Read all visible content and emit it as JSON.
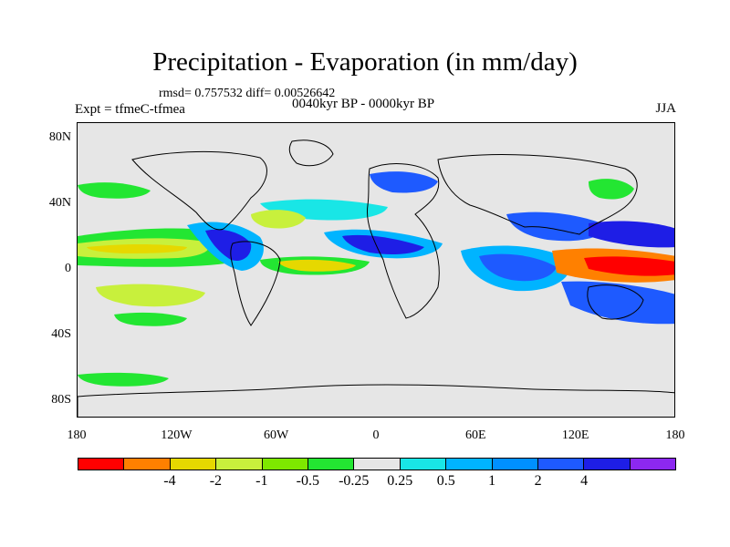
{
  "title": "Precipitation - Evaporation (in mm/day)",
  "stats": "rmsd= 0.757532 diff= 0.00526642",
  "expt": "Expt = tfmeC-tfmea",
  "period": "0040kyr BP - 0000kyr BP",
  "season": "JJA",
  "map": {
    "y_ticks": [
      {
        "label": "80N",
        "lat": 80
      },
      {
        "label": "40N",
        "lat": 40
      },
      {
        "label": "0",
        "lat": 0
      },
      {
        "label": "40S",
        "lat": -40
      },
      {
        "label": "80S",
        "lat": -80
      }
    ],
    "x_ticks": [
      {
        "label": "180",
        "lon": -180
      },
      {
        "label": "120W",
        "lon": -120
      },
      {
        "label": "60W",
        "lon": -60
      },
      {
        "label": "0",
        "lon": 0
      },
      {
        "label": "60E",
        "lon": 60
      },
      {
        "label": "120E",
        "lon": 120
      },
      {
        "label": "180",
        "lon": 180
      }
    ],
    "lat_range": [
      -90,
      90
    ],
    "lon_range": [
      -180,
      180
    ]
  },
  "colorbar": {
    "colors": [
      "#ff0000",
      "#ff8000",
      "#e6d800",
      "#c8f03c",
      "#7ee800",
      "#23e632",
      "#e6e6e6",
      "#19e6e6",
      "#00b4ff",
      "#0090ff",
      "#1e5aff",
      "#1e1ee6",
      "#8c28f0"
    ],
    "labels": [
      "-4",
      "-2",
      "-1",
      "-0.5",
      "-0.25",
      "0.25",
      "0.5",
      "1",
      "2",
      "4"
    ]
  }
}
